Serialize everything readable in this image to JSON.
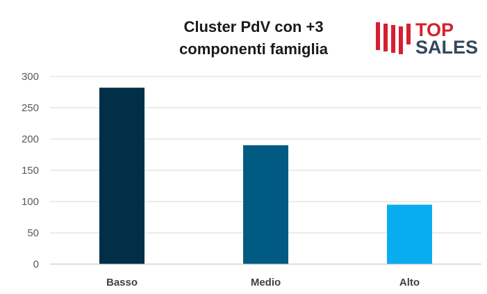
{
  "chart_data": {
    "type": "bar",
    "title": [
      "Cluster PdV con +3",
      "componenti famiglia"
    ],
    "categories": [
      "Basso",
      "Medio",
      "Alto"
    ],
    "values": [
      282,
      190,
      95
    ],
    "ylim": [
      0,
      300
    ],
    "yticks": [
      0,
      50,
      100,
      150,
      200,
      250,
      300
    ],
    "grid": true,
    "legend": "none",
    "bar_colors": [
      "#002f47",
      "#005a82",
      "#0aacf0"
    ]
  },
  "logo": {
    "line1": "TOP",
    "line2": "SALES",
    "mark_color": "#d42030",
    "line1_color": "#d42030",
    "line2_color": "#33475b"
  }
}
